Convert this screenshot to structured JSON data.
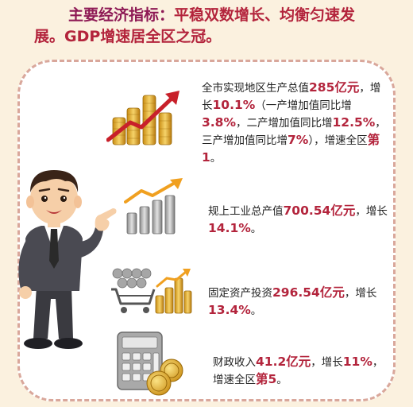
{
  "headline": {
    "label": "主要经济指标：",
    "line1_rest": "平稳双数增长、均衡匀速发",
    "line2": "展。GDP增速居全区之冠。"
  },
  "stats": {
    "gdp": {
      "t1": "全市实现地区生产总值",
      "v1": "285",
      "t2": "亿元",
      "t3": "，增长",
      "v2": "10.1%",
      "t4": "（一产增加值同比增",
      "v3": "3.8%",
      "t5": "，二产增加值同比增",
      "v4": "12.5%",
      "t6": "，三产增加值同比增",
      "v5": "7%",
      "t7": "），增速全区",
      "v6": "第1",
      "t8": "。"
    },
    "industry": {
      "t1": "规上工业总产值",
      "v1": "700.54亿元",
      "t2": "，增长",
      "v2": "14.1%",
      "t3": "。"
    },
    "investment": {
      "t1": "固定资产投资",
      "v1": "296.54亿元",
      "t2": "，增长",
      "v2": "13.4%",
      "t3": "。"
    },
    "finance": {
      "t1": "财政收入",
      "v1": "41.2亿元",
      "t2": "，增长",
      "v2": "11%",
      "t3": "，增速全区",
      "v3": "第5",
      "t4": "。"
    }
  },
  "icons": [
    "coins-growth-icon",
    "bar-growth-icon",
    "cart-coins-icon",
    "calculator-icon",
    "coin-icon"
  ],
  "colors": {
    "background": "#fbf1df",
    "accent_red": "#b3243c",
    "label_purple": "#8e1a55",
    "gold": "#e0b030",
    "border": "#d9a79b"
  }
}
